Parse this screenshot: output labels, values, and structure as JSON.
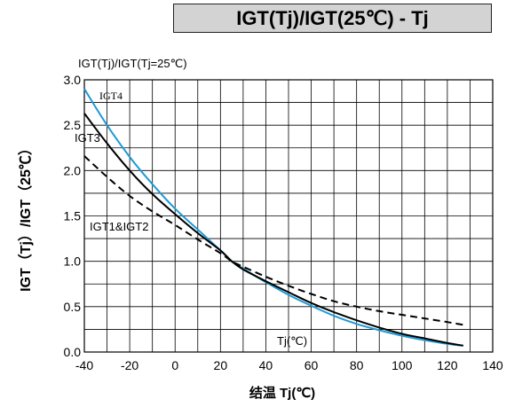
{
  "chart_data": {
    "type": "line",
    "title": "IGT(Tj)/IGT(25℃) - Tj",
    "ylabel": "IGT（Tj）/IGT（25℃）",
    "y_header": "IGT(Tj)/IGT(Tj=25℃)",
    "xlabel": "结温 Tj(℃)",
    "xlim": [
      -40,
      140
    ],
    "ylim": [
      0,
      3.0
    ],
    "xticks": [
      "-40",
      "-20",
      "0",
      "20",
      "40",
      "60",
      "80",
      "100",
      "120",
      "140"
    ],
    "yticks": [
      "0.0",
      "0.5",
      "1.0",
      "1.5",
      "2.0",
      "2.5",
      "3.0"
    ],
    "grid": true,
    "annotations": {
      "igt4": "IGT4",
      "igt3": "IGT3",
      "igt12": "IGT1&IGT2",
      "tj_unit": "Tj(℃)"
    },
    "series": [
      {
        "name": "IGT4",
        "color": "#1e9ad6",
        "style": "solid",
        "x": [
          -40,
          -30,
          -20,
          -10,
          0,
          10,
          20,
          25,
          30,
          40,
          50,
          60,
          70,
          80,
          90,
          100,
          110,
          120,
          127
        ],
        "y": [
          2.9,
          2.5,
          2.15,
          1.85,
          1.58,
          1.35,
          1.12,
          1.0,
          0.92,
          0.77,
          0.63,
          0.51,
          0.4,
          0.31,
          0.24,
          0.18,
          0.13,
          0.09,
          0.07
        ]
      },
      {
        "name": "IGT3",
        "color": "#000000",
        "style": "solid",
        "x": [
          -40,
          -30,
          -20,
          -10,
          0,
          10,
          20,
          25,
          30,
          40,
          50,
          60,
          70,
          80,
          90,
          100,
          110,
          120,
          127
        ],
        "y": [
          2.63,
          2.3,
          2.0,
          1.74,
          1.52,
          1.31,
          1.12,
          1.0,
          0.91,
          0.78,
          0.66,
          0.54,
          0.44,
          0.35,
          0.27,
          0.2,
          0.15,
          0.1,
          0.07
        ]
      },
      {
        "name": "IGT1&IGT2",
        "color": "#000000",
        "style": "dashed",
        "x": [
          -40,
          -30,
          -20,
          -10,
          0,
          10,
          20,
          25,
          30,
          40,
          50,
          60,
          70,
          80,
          90,
          100,
          110,
          120,
          127
        ],
        "y": [
          2.16,
          1.93,
          1.72,
          1.55,
          1.4,
          1.24,
          1.09,
          1.0,
          0.94,
          0.83,
          0.73,
          0.64,
          0.56,
          0.5,
          0.45,
          0.41,
          0.37,
          0.33,
          0.3
        ]
      }
    ]
  }
}
